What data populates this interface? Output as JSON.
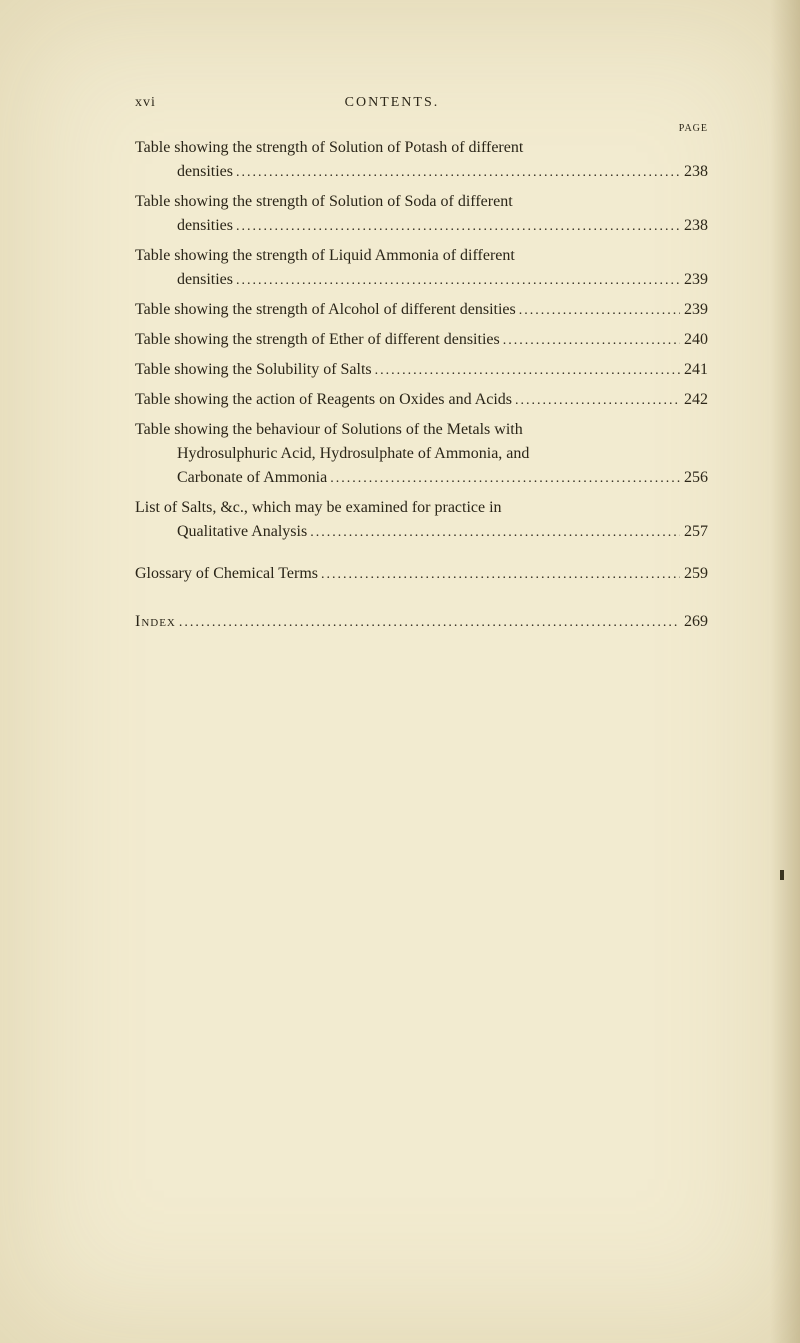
{
  "header": {
    "page_number": "xvi",
    "title": "CONTENTS.",
    "page_label": "PAGE"
  },
  "entries": [
    {
      "line1": "Table showing the strength of Solution of Potash of different",
      "line2": "densities",
      "page": "238"
    },
    {
      "line1": "Table showing the strength of Solution of Soda of different",
      "line2": "densities",
      "page": "238"
    },
    {
      "line1": "Table showing the strength of Liquid Ammonia of different",
      "line2": "densities",
      "page": "239"
    },
    {
      "line1": "Table showing the strength of Alcohol of different densities",
      "page": "239"
    },
    {
      "line1": "Table showing the strength of Ether of different densities ",
      "page": "240"
    },
    {
      "line1": "Table showing the Solubility of Salts",
      "page": "241"
    },
    {
      "line1": "Table showing the action of Reagents on Oxides and Acids",
      "page": "242"
    },
    {
      "line1": "Table showing the behaviour of Solutions of the Metals with",
      "line2": "Hydrosulphuric Acid, Hydrosulphate of Ammonia, and",
      "line3": "Carbonate of Ammonia",
      "page": "256"
    },
    {
      "line1": "List of Salts, &c., which may be examined for practice in",
      "line2": "Qualitative Analysis",
      "page": "257"
    },
    {
      "line1": "Glossary of Chemical Terms",
      "page": "259"
    }
  ],
  "index": {
    "label": "Index",
    "page": "269"
  },
  "styling": {
    "background_color": "#f2ebd0",
    "text_color": "#2a2518",
    "body_font_size": 16,
    "header_font_size": 14,
    "page_label_font_size": 10,
    "font_family": "Times New Roman"
  }
}
